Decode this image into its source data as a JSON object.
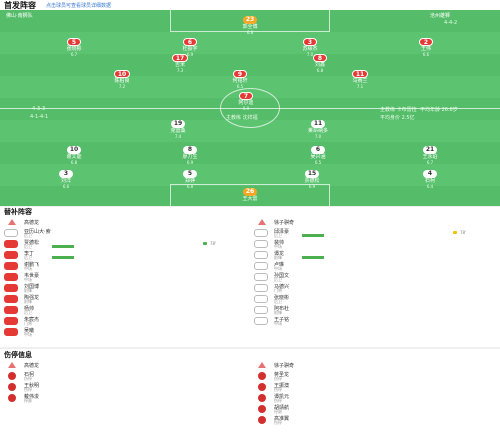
{
  "header": {
    "title": "首发阵容",
    "note": "点击球员可查看球员详细数据"
  },
  "pitch": {
    "home_team": "佛山·南狮队",
    "away_team": "沧州雄狮",
    "home_formation": "4-3-3",
    "away_formation": "4-4-2",
    "home_coach_label": "4-4-2",
    "mid_text": "主教练 沈祥福",
    "side_top_left": "4-1-4-1",
    "side_top_right": "4-4-2",
    "coach_info_right_1": "主教练 卡布雷拉",
    "coach_info_right_2": "平均年龄 26.8岁",
    "coach_info_right_3": "平均身价 2.5亿"
  },
  "home_players": [
    {
      "num": "23",
      "name": "郭全博",
      "rating": "6.8",
      "type": "gk"
    },
    {
      "num": "5",
      "name": "张晓彬",
      "rating": "6.7",
      "type": "home"
    },
    {
      "num": "6",
      "name": "杜振宇",
      "rating": "6.9",
      "type": "home"
    },
    {
      "num": "3",
      "name": "苏缘杰",
      "rating": "7.0",
      "type": "home"
    },
    {
      "num": "2",
      "name": "王伟",
      "rating": "6.6",
      "type": "home"
    },
    {
      "num": "17",
      "name": "吉米",
      "rating": "7.3",
      "type": "home"
    },
    {
      "num": "8",
      "name": "刘鑫",
      "rating": "6.8",
      "type": "home"
    },
    {
      "num": "10",
      "name": "陈柏良",
      "rating": "7.2",
      "type": "home"
    },
    {
      "num": "9",
      "name": "何铭轩",
      "rating": "6.5",
      "type": "home"
    },
    {
      "num": "11",
      "name": "马赛兰",
      "rating": "7.1",
      "type": "home"
    },
    {
      "num": "7",
      "name": "阿尔迪",
      "rating": "6.9",
      "type": "home"
    }
  ],
  "away_players": [
    {
      "num": "19",
      "name": "克雷桑",
      "rating": "7.4",
      "type": "away"
    },
    {
      "num": "11",
      "name": "莱昂纳多",
      "rating": "7.0",
      "type": "away"
    },
    {
      "num": "10",
      "name": "谢文能",
      "rating": "6.8",
      "type": "away"
    },
    {
      "num": "8",
      "name": "廖力生",
      "rating": "6.9",
      "type": "away"
    },
    {
      "num": "6",
      "name": "吴兴涵",
      "rating": "6.5",
      "type": "away"
    },
    {
      "num": "21",
      "name": "王永珀",
      "rating": "6.7",
      "type": "away"
    },
    {
      "num": "3",
      "name": "刘洋",
      "rating": "6.6",
      "type": "away"
    },
    {
      "num": "5",
      "name": "郑铮",
      "rating": "6.8",
      "type": "away"
    },
    {
      "num": "15",
      "name": "贾德松",
      "rating": "6.9",
      "type": "away"
    },
    {
      "num": "4",
      "name": "石柯",
      "rating": "6.4",
      "type": "away"
    },
    {
      "num": "26",
      "name": "王大雷",
      "rating": "7.2",
      "type": "gk"
    }
  ],
  "bench": {
    "title": "替补阵容",
    "left_coach": "高德龙",
    "right_coach": "徐子骐奇",
    "left": [
      {
        "num": "",
        "name": "亚历山大·索",
        "sub": "后卫",
        "time": ""
      },
      {
        "num": "",
        "name": "贾德松",
        "sub": "后卫",
        "time": "78'"
      },
      {
        "num": "",
        "name": "李丁",
        "sub": "后卫",
        "time": ""
      },
      {
        "num": "",
        "name": "谢鹏飞",
        "sub": "中场",
        "time": ""
      },
      {
        "num": "",
        "name": "韦世豪",
        "sub": "中场",
        "time": ""
      },
      {
        "num": "",
        "name": "刘国博",
        "sub": "前锋",
        "time": ""
      },
      {
        "num": "",
        "name": "陶强龙",
        "sub": "前锋",
        "time": ""
      },
      {
        "num": "",
        "name": "杨帅",
        "sub": "后卫",
        "time": ""
      },
      {
        "num": "",
        "name": "朱宸杰",
        "sub": "门将",
        "time": ""
      },
      {
        "num": "",
        "name": "吴曦",
        "sub": "中场",
        "time": ""
      }
    ],
    "right": [
      {
        "num": "16",
        "name": "邱泽豪",
        "sub": "后卫",
        "time": "78'"
      },
      {
        "num": "4",
        "name": "裴帅",
        "sub": "中场",
        "time": ""
      },
      {
        "num": "22",
        "name": "谭龙",
        "sub": "前锋",
        "time": ""
      },
      {
        "num": "26",
        "name": "卢琳",
        "sub": "中场",
        "time": ""
      },
      {
        "num": "13",
        "name": "孙国文",
        "sub": "后卫",
        "time": ""
      },
      {
        "num": "14",
        "name": "马德兴",
        "sub": "门将",
        "time": ""
      },
      {
        "num": "24",
        "name": "张晓彬",
        "sub": "后卫",
        "time": ""
      },
      {
        "num": "27",
        "name": "阿布杜",
        "sub": "前锋",
        "time": ""
      },
      {
        "num": "29",
        "name": "王子铭",
        "sub": "中场",
        "time": ""
      }
    ]
  },
  "injury": {
    "title": "伤停信息",
    "left_coach": "高德龙",
    "right_coach": "徐子骐奇",
    "left": [
      {
        "name": "石柯",
        "sub": "伤停"
      },
      {
        "name": "王秋明",
        "sub": "伤停"
      },
      {
        "name": "戴伟浚",
        "sub": "停赛"
      }
    ],
    "right": [
      {
        "name": "蒋圣龙",
        "sub": "伤停"
      },
      {
        "name": "王振澳",
        "sub": "伤停"
      },
      {
        "name": "谭凯元",
        "sub": "伤停"
      },
      {
        "name": "胡靖航",
        "sub": "停赛"
      },
      {
        "name": "高准翼",
        "sub": "伤停"
      }
    ]
  }
}
